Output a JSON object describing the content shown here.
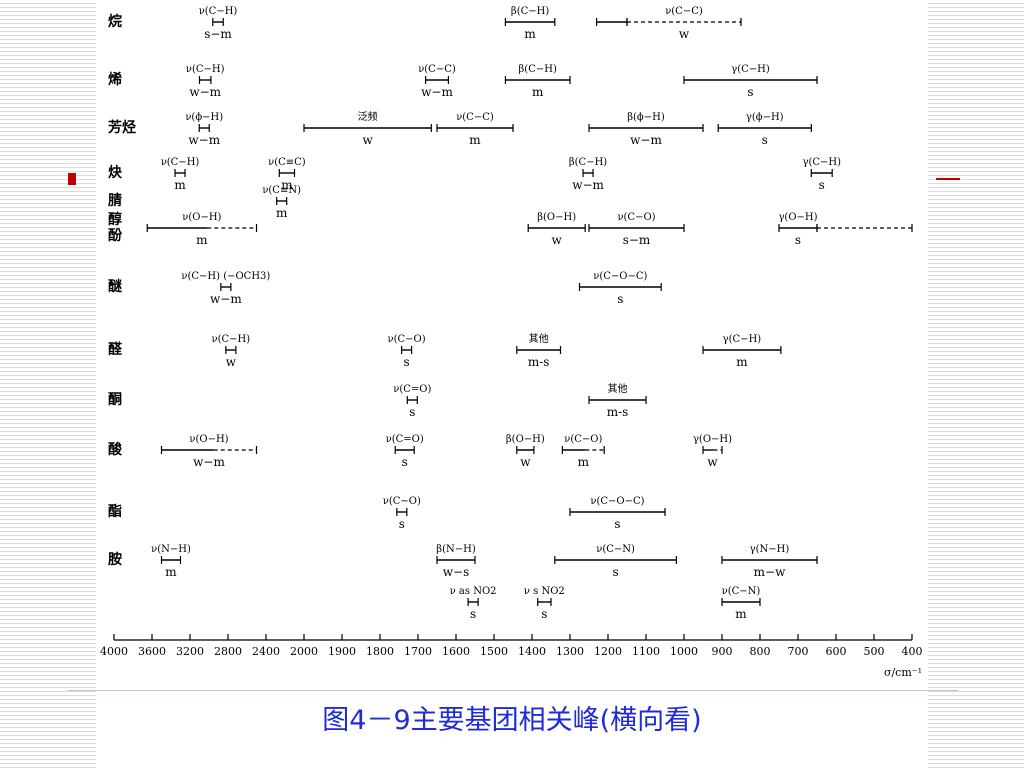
{
  "caption": "图4－9主要基团相关峰(横向看)",
  "colors": {
    "caption": "#1f2bd6",
    "accent": "#c00000",
    "ink": "#000000"
  },
  "chart_data": {
    "type": "range-chart",
    "xlabel": "σ/cm⁻¹",
    "x_range": [
      4000,
      400
    ],
    "x_ticks": [
      4000,
      3600,
      3200,
      2800,
      2400,
      2000,
      1900,
      1800,
      1700,
      1600,
      1500,
      1400,
      1300,
      1200,
      1100,
      1000,
      900,
      800,
      700,
      600,
      500,
      400
    ],
    "x_tick_labels": [
      "4000",
      "3600",
      "3200",
      "2800",
      "2400",
      "2000",
      "1900",
      "1800",
      "1700",
      "1600",
      "1500",
      "1400",
      "1300",
      "1200",
      "1100",
      "1000",
      "900",
      "800",
      "700",
      "600",
      "500",
      "400"
    ],
    "groups": [
      {
        "label": "烷",
        "ranges": [
          {
            "label": "ν(C−H)",
            "intensity": "s−m",
            "from": 2960,
            "to": 2850
          },
          {
            "label": "β(C−H)",
            "intensity": "m",
            "from": 1470,
            "to": 1340
          },
          {
            "label": "",
            "intensity": "",
            "from": 1230,
            "to": 1150
          },
          {
            "label": "ν(C−C)",
            "intensity": "w",
            "from": 1150,
            "to": 850,
            "style": "dashed"
          }
        ]
      },
      {
        "label": "烯",
        "ranges": [
          {
            "label": "ν(C−H)",
            "intensity": "w−m",
            "from": 3100,
            "to": 2980
          },
          {
            "label": "ν(C−C)",
            "intensity": "w−m",
            "from": 1680,
            "to": 1620
          },
          {
            "label": "β(C−H)",
            "intensity": "m",
            "from": 1470,
            "to": 1300
          },
          {
            "label": "γ(C−H)",
            "intensity": "s",
            "from": 1000,
            "to": 650
          }
        ]
      },
      {
        "label": "芳烃",
        "ranges": [
          {
            "label": "ν(ϕ−H)",
            "intensity": "w−m",
            "from": 3100,
            "to": 3000
          },
          {
            "label": "泛频",
            "intensity": "w",
            "from": 2000,
            "to": 1665
          },
          {
            "label": "ν(C−C)",
            "intensity": "m",
            "from": 1650,
            "to": 1450
          },
          {
            "label": "β(ϕ−H)",
            "intensity": "w−m",
            "from": 1250,
            "to": 950
          },
          {
            "label": "γ(ϕ−H)",
            "intensity": "s",
            "from": 910,
            "to": 665
          }
        ]
      },
      {
        "label": "炔",
        "ranges": [
          {
            "label": "ν(C−H)",
            "intensity": "m",
            "from": 3310,
            "to": 3300
          },
          {
            "label": "ν(C≡C)",
            "intensity": "m",
            "from": 2260,
            "to": 2100
          },
          {
            "label": "β(C−H)",
            "intensity": "w−m",
            "from": 1260,
            "to": 1245
          },
          {
            "label": "γ(C−H)",
            "intensity": "s",
            "from": 665,
            "to": 610
          }
        ]
      },
      {
        "label": "腈",
        "ranges": [
          {
            "label": "ν(C≡N)",
            "intensity": "m",
            "from": 2260,
            "to": 2210
          }
        ]
      },
      {
        "label": "醇\n酚",
        "ranges": [
          {
            "label": "ν(O−H)",
            "intensity": "m",
            "from": 3650,
            "to": 2500,
            "style": "mixed"
          },
          {
            "label": "β(O−H)",
            "intensity": "w",
            "from": 1410,
            "to": 1260
          },
          {
            "label": "ν(C−O)",
            "intensity": "s−m",
            "from": 1250,
            "to": 1000
          },
          {
            "label": "γ(O−H)",
            "intensity": "s",
            "from": 750,
            "to": 650
          },
          {
            "label": "",
            "intensity": "",
            "from": 650,
            "to": 400,
            "style": "dashed"
          }
        ]
      },
      {
        "label": "醚",
        "ranges": [
          {
            "label": "ν(C−H) (−OCH3)",
            "intensity": "w−m",
            "from": 2830,
            "to": 2815
          },
          {
            "label": "ν(C−O−C)",
            "intensity": "s",
            "from": 1275,
            "to": 1060
          }
        ]
      },
      {
        "label": "醛",
        "ranges": [
          {
            "label": "ν(C−H)",
            "intensity": "w",
            "from": 2820,
            "to": 2720
          },
          {
            "label": "ν(C−O)",
            "intensity": "s",
            "from": 1740,
            "to": 1720
          },
          {
            "label": "其他",
            "intensity": "m-s",
            "from": 1440,
            "to": 1325
          },
          {
            "label": "γ(C−H)",
            "intensity": "m",
            "from": 950,
            "to": 745
          }
        ]
      },
      {
        "label": "酮",
        "ranges": [
          {
            "label": "ν(C=O)",
            "intensity": "s",
            "from": 1725,
            "to": 1705
          },
          {
            "label": "其他",
            "intensity": "m-s",
            "from": 1250,
            "to": 1100
          }
        ]
      },
      {
        "label": "酸",
        "ranges": [
          {
            "label": "ν(O−H)",
            "intensity": "w−m",
            "from": 3500,
            "to": 2500,
            "style": "mixed"
          },
          {
            "label": "ν(C=O)",
            "intensity": "s",
            "from": 1760,
            "to": 1710
          },
          {
            "label": "β(O−H)",
            "intensity": "w",
            "from": 1440,
            "to": 1395
          },
          {
            "label": "ν(C−O)",
            "intensity": "m",
            "from": 1320,
            "to": 1210,
            "style": "mixed"
          },
          {
            "label": "γ(O−H)",
            "intensity": "w",
            "from": 950,
            "to": 900,
            "style": "mixed"
          }
        ]
      },
      {
        "label": "酯",
        "ranges": [
          {
            "label": "ν(C−O)",
            "intensity": "s",
            "from": 1750,
            "to": 1735
          },
          {
            "label": "ν(C−O−C)",
            "intensity": "s",
            "from": 1300,
            "to": 1050
          }
        ]
      },
      {
        "label": "胺",
        "ranges": [
          {
            "label": "ν(N−H)",
            "intensity": "m",
            "from": 3500,
            "to": 3300
          },
          {
            "label": "β(N−H)",
            "intensity": "w−s",
            "from": 1650,
            "to": 1550
          },
          {
            "label": "ν(C−N)",
            "intensity": "s",
            "from": 1340,
            "to": 1020
          },
          {
            "label": "γ(N−H)",
            "intensity": "m−w",
            "from": 900,
            "to": 650
          },
          {
            "label": "ν as NO2",
            "intensity": "s",
            "from": 1565,
            "to": 1545
          },
          {
            "label": "ν s NO2",
            "intensity": "s",
            "from": 1385,
            "to": 1350
          },
          {
            "label": "ν(C−N)",
            "intensity": "m",
            "from": 900,
            "to": 800
          }
        ]
      }
    ]
  }
}
